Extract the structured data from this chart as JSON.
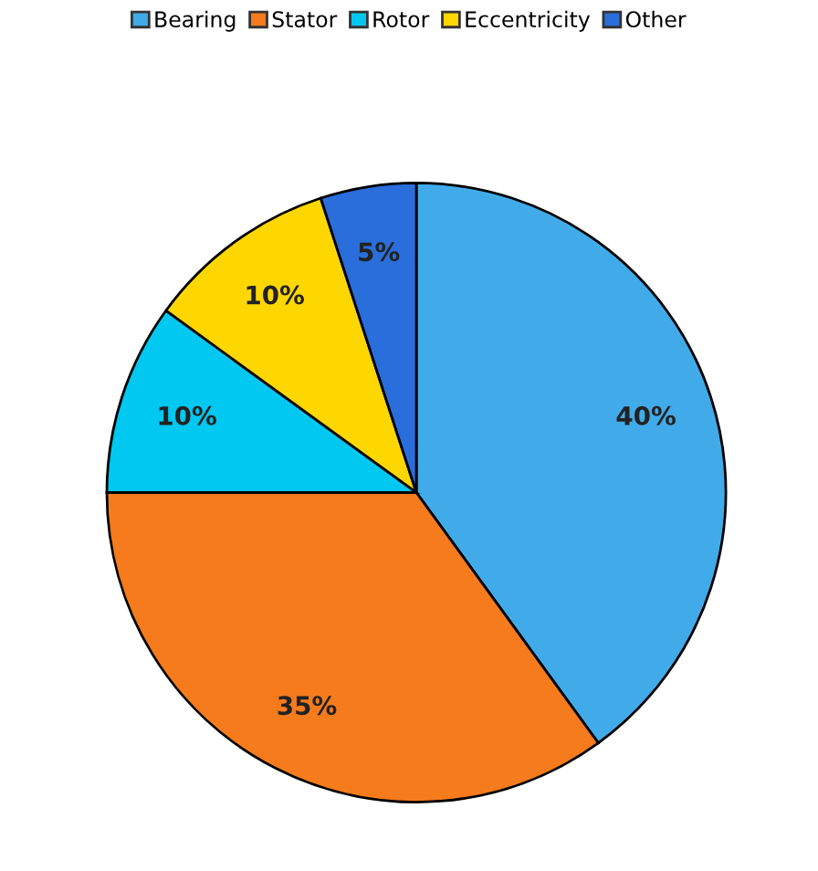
{
  "chart_data": {
    "type": "pie",
    "categories": [
      "Bearing",
      "Stator",
      "Rotor",
      "Eccentricity",
      "Other"
    ],
    "values": [
      40,
      35,
      10,
      10,
      5
    ],
    "colors": [
      "#41abe9",
      "#f57b1c",
      "#00c8f0",
      "#ffd700",
      "#2a6edb"
    ],
    "value_labels": [
      "40%",
      "35%",
      "10%",
      "10%",
      "5%"
    ],
    "legend": "top"
  }
}
